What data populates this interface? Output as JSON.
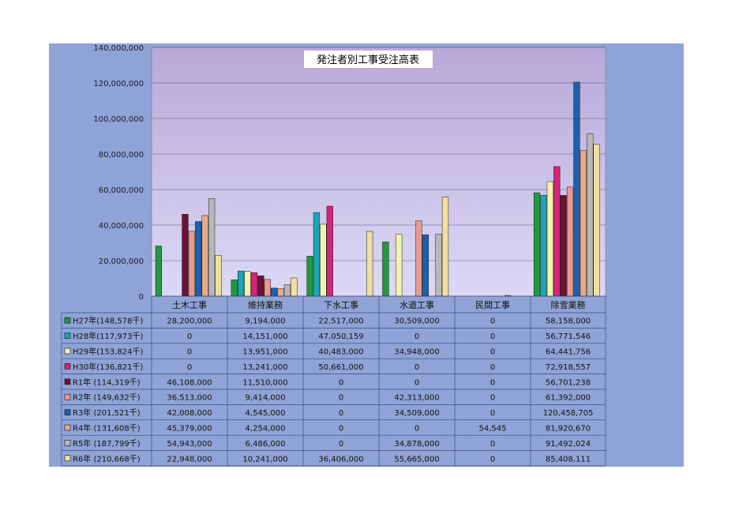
{
  "chart_data": {
    "type": "bar",
    "title": "発注者別工事受注高表",
    "categories": [
      "土木工事",
      "維持業務",
      "下水工事",
      "水道工事",
      "民間工事",
      "除雪業務"
    ],
    "ylim": [
      0,
      140000000
    ],
    "yticks": [
      "140,000,000",
      "120,000,000",
      "100,000,000",
      "80,000,000",
      "60,000,000",
      "40,000,000",
      "20,000,000",
      "0"
    ],
    "ytick_values": [
      140000000,
      120000000,
      100000000,
      80000000,
      60000000,
      40000000,
      20000000,
      0
    ],
    "grid": true,
    "series": [
      {
        "name": "H27年(148,578千)",
        "color": "#1f9a3c",
        "values": [
          28200000,
          9194000,
          22517000,
          30509000,
          0,
          58158000
        ],
        "labels": [
          "28,200,000",
          "9,194,000",
          "22,517,000",
          "30,509,000",
          "0",
          "58,158,000"
        ]
      },
      {
        "name": "H28年(117,973千)",
        "color": "#1aa6b8",
        "values": [
          0,
          14151000,
          47050159,
          0,
          0,
          56771546
        ],
        "labels": [
          "0",
          "14,151,000",
          "47,050,159",
          "0",
          "0",
          "56,771,546"
        ]
      },
      {
        "name": "H29年(153,824千)",
        "color": "#f4f2a8",
        "values": [
          0,
          13951000,
          40483000,
          34948000,
          0,
          64441756
        ],
        "labels": [
          "0",
          "13,951,000",
          "40,483,000",
          "34,948,000",
          "0",
          "64,441,756"
        ]
      },
      {
        "name": "H30年(136,821千)",
        "color": "#d6247a",
        "values": [
          0,
          13241000,
          50661000,
          0,
          0,
          72918557
        ],
        "labels": [
          "0",
          "13,241,000",
          "50,661,000",
          "0",
          "0",
          "72,918,557"
        ]
      },
      {
        "name": "R1年 (114,319千)",
        "color": "#6e1035",
        "values": [
          46108000,
          11510000,
          0,
          0,
          0,
          56701238
        ],
        "labels": [
          "46,108,000",
          "11,510,000",
          "0",
          "0",
          "0",
          "56,701,238"
        ]
      },
      {
        "name": "R2年 (149,632千)",
        "color": "#e89a8e",
        "values": [
          36513000,
          9414000,
          0,
          42313000,
          0,
          61392000
        ],
        "labels": [
          "36,513,000",
          "9,414,000",
          "0",
          "42,313,000",
          "0",
          "61,392,000"
        ]
      },
      {
        "name": "R3年 (201,521千)",
        "color": "#1f5faa",
        "values": [
          42008000,
          4545000,
          0,
          34509000,
          0,
          120458705
        ],
        "labels": [
          "42,008,000",
          "4,545,000",
          "0",
          "34,509,000",
          "0",
          "120,458,705"
        ]
      },
      {
        "name": "R4年 (131,608千)",
        "color": "#e8a98a",
        "values": [
          45379000,
          4254000,
          0,
          0,
          54545,
          81920670
        ],
        "labels": [
          "45,379,000",
          "4,254,000",
          "0",
          "0",
          "54,545",
          "81,920,670"
        ]
      },
      {
        "name": "R5年 (187,799千)",
        "color": "#b8b8b8",
        "values": [
          54943000,
          6486000,
          0,
          34878000,
          0,
          91492024
        ],
        "labels": [
          "54,943,000",
          "6,486,000",
          "0",
          "34,878,000",
          "0",
          "91,492,024"
        ]
      },
      {
        "name": "R6年 (210,668千)",
        "color": "#f2dfa0",
        "values": [
          22948000,
          10241000,
          36406000,
          55665000,
          0,
          85408111
        ],
        "labels": [
          "22,948,000",
          "10,241,000",
          "36,406,000",
          "55,665,000",
          "0",
          "85,408,111"
        ]
      }
    ]
  },
  "colors": {
    "card_bg": "#8fa3d6",
    "plot_top": "#b8a8d8",
    "plot_bottom": "#dcd9f6",
    "table_line": "#3b4a7a"
  }
}
